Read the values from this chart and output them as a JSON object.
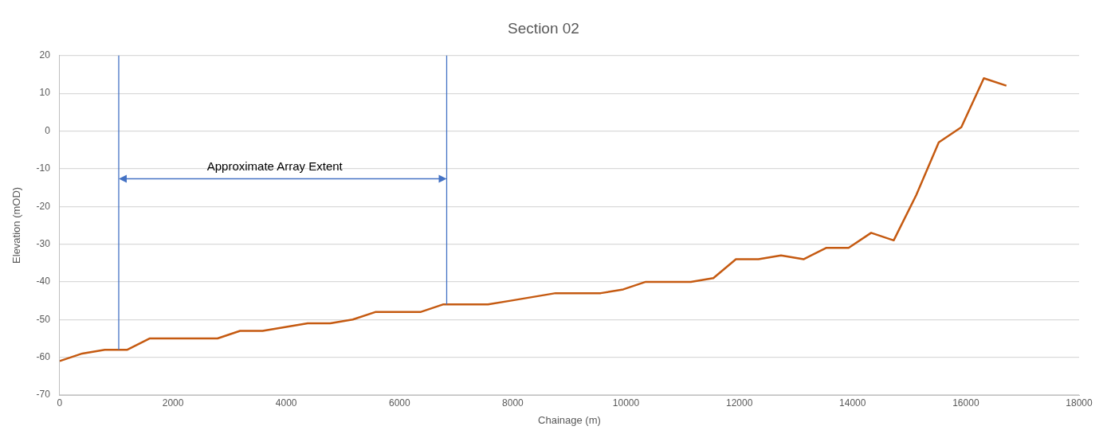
{
  "chart_data": {
    "type": "line",
    "title": "Section 02",
    "xlabel": "Chainage (m)",
    "ylabel": "Elevation (mOD)",
    "x": [
      0,
      398,
      796,
      1194,
      1592,
      1990,
      2388,
      2786,
      3184,
      3582,
      3980,
      4378,
      4776,
      5174,
      5572,
      5970,
      6368,
      6766,
      7164,
      7562,
      7960,
      8358,
      8756,
      9154,
      9552,
      9950,
      10348,
      10746,
      11144,
      11542,
      11940,
      12338,
      12736,
      13134,
      13532,
      13930,
      14328,
      14726,
      15124,
      15522,
      15920,
      16318,
      16716
    ],
    "series": [
      {
        "color": "#c55a11",
        "values": [
          -61,
          -59,
          -58,
          -58,
          -55,
          -55,
          -55,
          -55,
          -53,
          -53,
          -52,
          -51,
          -51,
          -50,
          -48,
          -48,
          -48,
          -46,
          -46,
          -46,
          -45,
          -44,
          -43,
          -43,
          -43,
          -42,
          -40,
          -40,
          -40,
          -39,
          -34,
          -34,
          -33,
          -34,
          -31,
          -31,
          -27,
          -29,
          -17,
          -3,
          1,
          14,
          12
        ]
      }
    ],
    "xlim": [
      0,
      18000
    ],
    "xticks": [
      0,
      2000,
      4000,
      6000,
      8000,
      10000,
      12000,
      14000,
      16000,
      18000
    ],
    "ylim": [
      -70,
      20
    ],
    "yticks": [
      -70,
      -60,
      -50,
      -40,
      -30,
      -20,
      -10,
      0,
      10,
      20
    ],
    "ref_lines": [
      {
        "axis": "x",
        "value": 1042,
        "color": "#4472c4"
      },
      {
        "axis": "x",
        "value": 6833,
        "color": "#4472c4"
      }
    ],
    "annotations": [
      "Approximate Array Extent"
    ],
    "grid": "y",
    "legend": false,
    "marker": "none",
    "line_style": "solid"
  }
}
